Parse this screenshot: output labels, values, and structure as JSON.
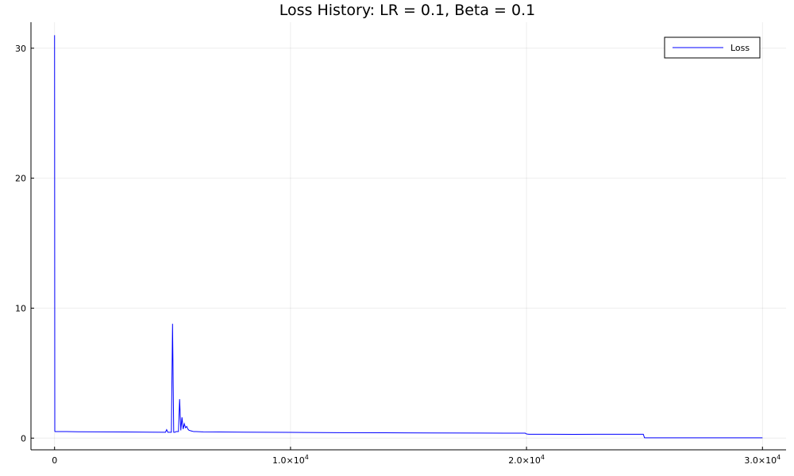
{
  "chart_data": {
    "type": "line",
    "title": "Loss History: LR = 0.1, Beta = 0.1",
    "xlabel": "",
    "ylabel": "",
    "xlim": [
      -1000,
      31000
    ],
    "ylim": [
      -0.9,
      32
    ],
    "x_ticks": [
      {
        "value": 0,
        "label": "0",
        "mantissa": "",
        "exponent": ""
      },
      {
        "value": 10000,
        "label": "",
        "mantissa": "1.0×10",
        "exponent": "4"
      },
      {
        "value": 20000,
        "label": "",
        "mantissa": "2.0×10",
        "exponent": "4"
      },
      {
        "value": 30000,
        "label": "",
        "mantissa": "3.0×10",
        "exponent": "4"
      }
    ],
    "y_ticks": [
      {
        "value": 0,
        "label": "0"
      },
      {
        "value": 10,
        "label": "10"
      },
      {
        "value": 20,
        "label": "20"
      },
      {
        "value": 30,
        "label": "30"
      }
    ],
    "grid": true,
    "legend_position": "top-right",
    "colors": {
      "series": "#0000ff"
    },
    "series": [
      {
        "name": "Loss",
        "x": [
          0,
          10,
          20,
          50,
          100,
          500,
          1000,
          2000,
          3000,
          4000,
          4700,
          4750,
          4800,
          4850,
          4950,
          5000,
          5050,
          5100,
          5150,
          5200,
          5250,
          5300,
          5350,
          5400,
          5450,
          5500,
          5550,
          5600,
          5650,
          5700,
          5800,
          5900,
          6000,
          6300,
          7000,
          8000,
          10000,
          12000,
          14000,
          16000,
          18000,
          19950,
          20000,
          20100,
          21000,
          22000,
          23000,
          24000,
          24950,
          25000,
          25050,
          26000,
          27000,
          28000,
          29000,
          30000
        ],
        "y": [
          31.0,
          0.55,
          0.5,
          0.5,
          0.5,
          0.5,
          0.49,
          0.48,
          0.47,
          0.46,
          0.45,
          0.65,
          0.45,
          0.45,
          0.45,
          8.8,
          0.45,
          0.45,
          0.5,
          0.5,
          0.5,
          3.0,
          0.6,
          1.6,
          0.7,
          1.1,
          0.8,
          0.9,
          0.7,
          0.6,
          0.55,
          0.5,
          0.5,
          0.48,
          0.47,
          0.46,
          0.44,
          0.42,
          0.41,
          0.4,
          0.39,
          0.38,
          0.32,
          0.3,
          0.3,
          0.29,
          0.3,
          0.3,
          0.3,
          0.03,
          0.02,
          0.02,
          0.02,
          0.02,
          0.02,
          0.02
        ]
      }
    ]
  }
}
